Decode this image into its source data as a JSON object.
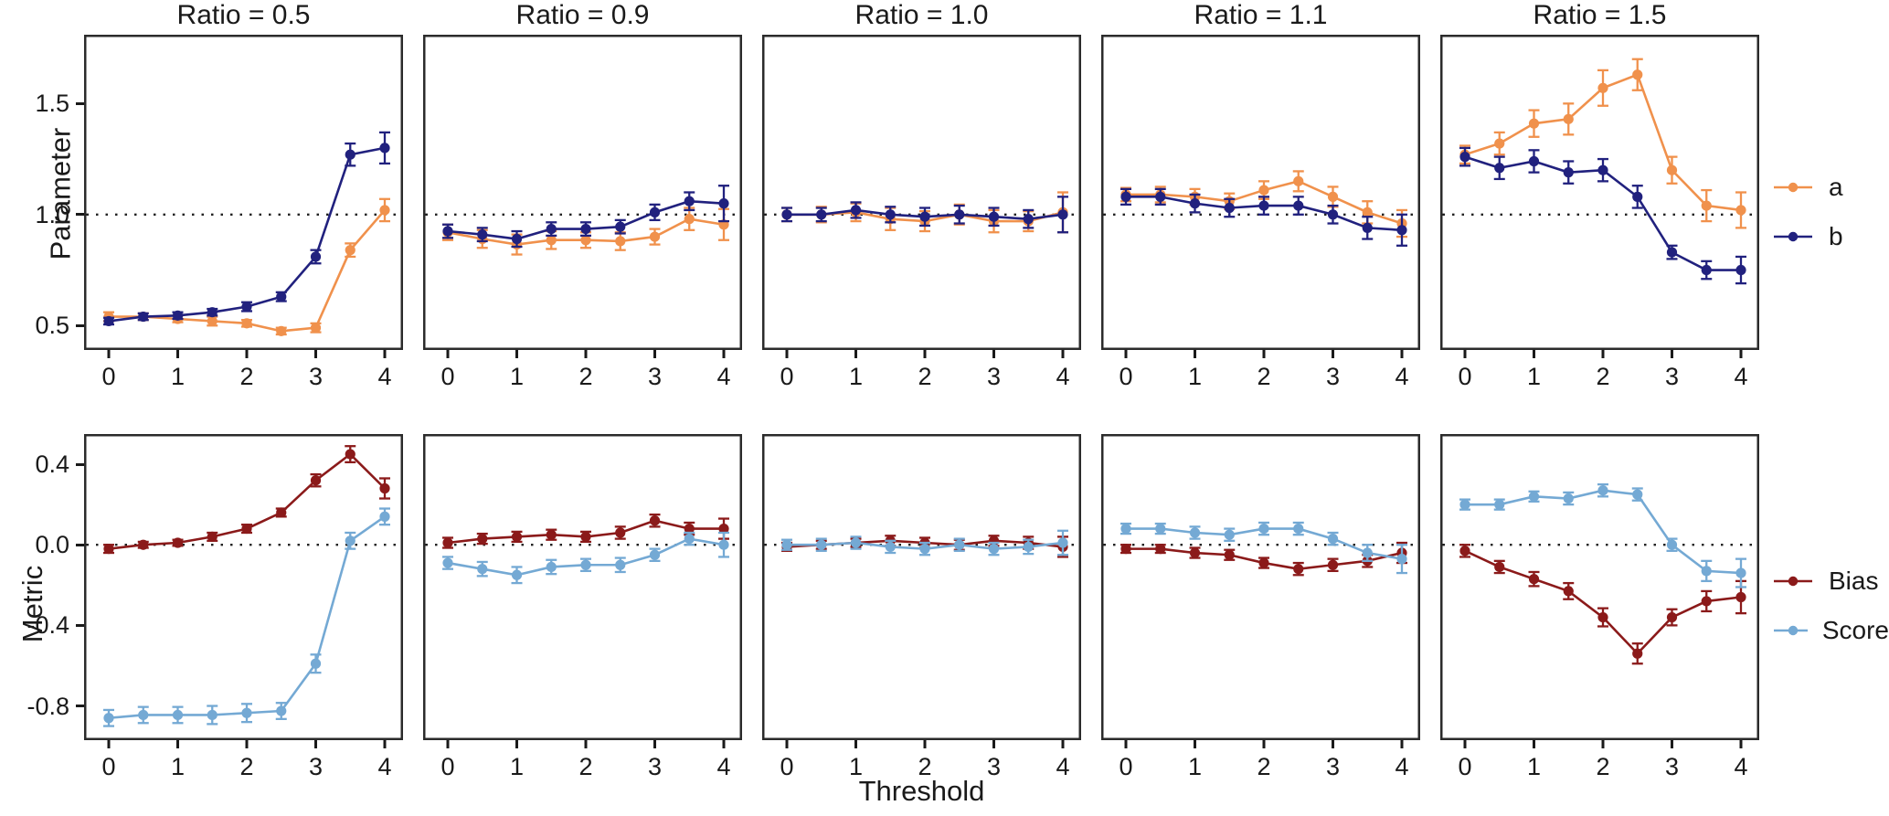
{
  "figure": {
    "xlabel": "Threshold",
    "background": "#ffffff"
  },
  "chart_data": {
    "type": "line",
    "description": "Faceted error-bar line chart: 2 metric rows x 5 ratio columns",
    "x": [
      0,
      0.5,
      1,
      1.5,
      2,
      2.5,
      3,
      3.5,
      4
    ],
    "x_ticks": [
      {
        "v": 0,
        "label": "0"
      },
      {
        "v": 1,
        "label": "1"
      },
      {
        "v": 2,
        "label": "2"
      },
      {
        "v": 3,
        "label": "3"
      },
      {
        "v": 4,
        "label": "4"
      }
    ],
    "xlabel": "Threshold",
    "grid": "off",
    "legend_position": "right",
    "facet_titles": [
      "Ratio = 0.5",
      "Ratio = 0.9",
      "Ratio = 1.0",
      "Ratio = 1.1",
      "Ratio = 1.5"
    ],
    "rows": [
      {
        "ylabel": "Parameter",
        "ylim": [
          0.39,
          1.81
        ],
        "ref_line": 1.0,
        "y_ticks": [
          {
            "v": 0.5,
            "label": "0.5"
          },
          {
            "v": 1.0,
            "label": "1.0"
          },
          {
            "v": 1.5,
            "label": "1.5"
          }
        ],
        "legend": [
          {
            "name": "a",
            "color": "#F0914C"
          },
          {
            "name": "b",
            "color": "#21217E"
          }
        ],
        "facets": [
          {
            "title": "Ratio = 0.5",
            "series": [
              {
                "name": "a",
                "values": [
                  0.54,
                  0.54,
                  0.53,
                  0.52,
                  0.51,
                  0.475,
                  0.49,
                  0.84,
                  1.02
                ],
                "err": [
                  0.02,
                  0.015,
                  0.015,
                  0.02,
                  0.015,
                  0.015,
                  0.02,
                  0.03,
                  0.05
                ]
              },
              {
                "name": "b",
                "values": [
                  0.52,
                  0.54,
                  0.545,
                  0.56,
                  0.585,
                  0.63,
                  0.81,
                  1.27,
                  1.3
                ],
                "err": [
                  0.015,
                  0.015,
                  0.015,
                  0.015,
                  0.02,
                  0.02,
                  0.03,
                  0.05,
                  0.07
                ]
              }
            ]
          },
          {
            "title": "Ratio = 0.9",
            "series": [
              {
                "name": "a",
                "values": [
                  0.92,
                  0.89,
                  0.865,
                  0.885,
                  0.885,
                  0.88,
                  0.9,
                  0.98,
                  0.955
                ],
                "err": [
                  0.035,
                  0.04,
                  0.045,
                  0.04,
                  0.035,
                  0.04,
                  0.035,
                  0.05,
                  0.07
                ]
              },
              {
                "name": "b",
                "values": [
                  0.925,
                  0.91,
                  0.89,
                  0.935,
                  0.935,
                  0.945,
                  1.01,
                  1.06,
                  1.05
                ],
                "err": [
                  0.03,
                  0.03,
                  0.035,
                  0.03,
                  0.03,
                  0.03,
                  0.035,
                  0.04,
                  0.08
                ]
              }
            ]
          },
          {
            "title": "Ratio = 1.0",
            "series": [
              {
                "name": "a",
                "values": [
                  1.0,
                  1.0,
                  1.01,
                  0.98,
                  0.97,
                  1.0,
                  0.97,
                  0.97,
                  1.01
                ],
                "err": [
                  0.03,
                  0.035,
                  0.04,
                  0.05,
                  0.045,
                  0.045,
                  0.05,
                  0.045,
                  0.09
                ]
              },
              {
                "name": "b",
                "values": [
                  1.0,
                  1.0,
                  1.02,
                  1.0,
                  0.99,
                  1.0,
                  0.99,
                  0.98,
                  1.0
                ],
                "err": [
                  0.03,
                  0.03,
                  0.035,
                  0.035,
                  0.04,
                  0.04,
                  0.04,
                  0.04,
                  0.08
                ]
              }
            ]
          },
          {
            "title": "Ratio = 1.1",
            "series": [
              {
                "name": "a",
                "values": [
                  1.09,
                  1.09,
                  1.08,
                  1.06,
                  1.11,
                  1.15,
                  1.08,
                  1.01,
                  0.96
                ],
                "err": [
                  0.03,
                  0.035,
                  0.035,
                  0.035,
                  0.04,
                  0.045,
                  0.045,
                  0.05,
                  0.06
                ]
              },
              {
                "name": "b",
                "values": [
                  1.08,
                  1.08,
                  1.05,
                  1.03,
                  1.04,
                  1.04,
                  1.0,
                  0.94,
                  0.93
                ],
                "err": [
                  0.035,
                  0.035,
                  0.04,
                  0.04,
                  0.04,
                  0.04,
                  0.04,
                  0.05,
                  0.07
                ]
              }
            ]
          },
          {
            "title": "Ratio = 1.5",
            "series": [
              {
                "name": "a",
                "values": [
                  1.27,
                  1.32,
                  1.41,
                  1.43,
                  1.57,
                  1.63,
                  1.2,
                  1.04,
                  1.02
                ],
                "err": [
                  0.04,
                  0.05,
                  0.06,
                  0.07,
                  0.08,
                  0.07,
                  0.06,
                  0.07,
                  0.08
                ]
              },
              {
                "name": "b",
                "values": [
                  1.26,
                  1.21,
                  1.24,
                  1.19,
                  1.2,
                  1.08,
                  0.83,
                  0.75,
                  0.75
                ],
                "err": [
                  0.04,
                  0.05,
                  0.05,
                  0.05,
                  0.05,
                  0.05,
                  0.03,
                  0.04,
                  0.06
                ]
              }
            ]
          }
        ]
      },
      {
        "ylabel": "Metric",
        "ylim": [
          -0.97,
          0.55
        ],
        "ref_line": 0.0,
        "y_ticks": [
          {
            "v": 0.4,
            "label": "0.4"
          },
          {
            "v": 0.0,
            "label": "0.0"
          },
          {
            "v": -0.4,
            "label": "-0.4"
          },
          {
            "v": -0.8,
            "label": "-0.8"
          }
        ],
        "legend": [
          {
            "name": "Bias",
            "color": "#8B1A1A"
          },
          {
            "name": "Score",
            "color": "#74A9D4"
          }
        ],
        "facets": [
          {
            "series": [
              {
                "name": "Bias",
                "values": [
                  -0.02,
                  0.0,
                  0.01,
                  0.04,
                  0.08,
                  0.16,
                  0.32,
                  0.45,
                  0.28
                ],
                "err": [
                  0.02,
                  0.015,
                  0.015,
                  0.02,
                  0.02,
                  0.02,
                  0.03,
                  0.04,
                  0.05
                ]
              },
              {
                "name": "Score",
                "values": [
                  -0.86,
                  -0.845,
                  -0.845,
                  -0.845,
                  -0.835,
                  -0.825,
                  -0.59,
                  0.02,
                  0.14
                ],
                "err": [
                  0.04,
                  0.04,
                  0.04,
                  0.045,
                  0.045,
                  0.04,
                  0.045,
                  0.04,
                  0.04
                ]
              }
            ]
          },
          {
            "series": [
              {
                "name": "Bias",
                "values": [
                  0.01,
                  0.03,
                  0.04,
                  0.05,
                  0.04,
                  0.06,
                  0.12,
                  0.08,
                  0.08
                ],
                "err": [
                  0.025,
                  0.025,
                  0.025,
                  0.025,
                  0.025,
                  0.03,
                  0.03,
                  0.03,
                  0.05
                ]
              },
              {
                "name": "Score",
                "values": [
                  -0.09,
                  -0.12,
                  -0.15,
                  -0.11,
                  -0.1,
                  -0.1,
                  -0.05,
                  0.03,
                  0.0
                ],
                "err": [
                  0.03,
                  0.035,
                  0.04,
                  0.035,
                  0.03,
                  0.035,
                  0.03,
                  0.03,
                  0.06
                ]
              }
            ]
          },
          {
            "series": [
              {
                "name": "Bias",
                "values": [
                  -0.01,
                  0.0,
                  0.01,
                  0.02,
                  0.01,
                  0.0,
                  0.02,
                  0.01,
                  -0.01
                ],
                "err": [
                  0.02,
                  0.02,
                  0.02,
                  0.025,
                  0.025,
                  0.025,
                  0.025,
                  0.03,
                  0.05
                ]
              },
              {
                "name": "Score",
                "values": [
                  0.0,
                  0.0,
                  0.01,
                  -0.01,
                  -0.02,
                  0.0,
                  -0.02,
                  -0.01,
                  0.01
                ],
                "err": [
                  0.025,
                  0.03,
                  0.03,
                  0.03,
                  0.03,
                  0.03,
                  0.03,
                  0.035,
                  0.06
                ]
              }
            ]
          },
          {
            "series": [
              {
                "name": "Bias",
                "values": [
                  -0.02,
                  -0.02,
                  -0.04,
                  -0.05,
                  -0.09,
                  -0.12,
                  -0.1,
                  -0.08,
                  -0.04
                ],
                "err": [
                  0.02,
                  0.02,
                  0.025,
                  0.025,
                  0.025,
                  0.03,
                  0.03,
                  0.03,
                  0.05
                ]
              },
              {
                "name": "Score",
                "values": [
                  0.08,
                  0.08,
                  0.06,
                  0.05,
                  0.08,
                  0.08,
                  0.03,
                  -0.04,
                  -0.07
                ],
                "err": [
                  0.025,
                  0.025,
                  0.03,
                  0.03,
                  0.03,
                  0.03,
                  0.03,
                  0.04,
                  0.07
                ]
              }
            ]
          },
          {
            "series": [
              {
                "name": "Bias",
                "values": [
                  -0.03,
                  -0.11,
                  -0.17,
                  -0.23,
                  -0.36,
                  -0.54,
                  -0.36,
                  -0.28,
                  -0.26
                ],
                "err": [
                  0.03,
                  0.03,
                  0.035,
                  0.04,
                  0.045,
                  0.05,
                  0.04,
                  0.05,
                  0.08
                ]
              },
              {
                "name": "Score",
                "values": [
                  0.2,
                  0.2,
                  0.24,
                  0.23,
                  0.27,
                  0.25,
                  0.0,
                  -0.13,
                  -0.14
                ],
                "err": [
                  0.025,
                  0.025,
                  0.025,
                  0.03,
                  0.03,
                  0.03,
                  0.03,
                  0.05,
                  0.07
                ]
              }
            ]
          }
        ]
      }
    ],
    "style": {
      "ref_line_color": "#222222",
      "border_color": "#2b2b2b",
      "tick_color": "#1a1a1a"
    }
  }
}
